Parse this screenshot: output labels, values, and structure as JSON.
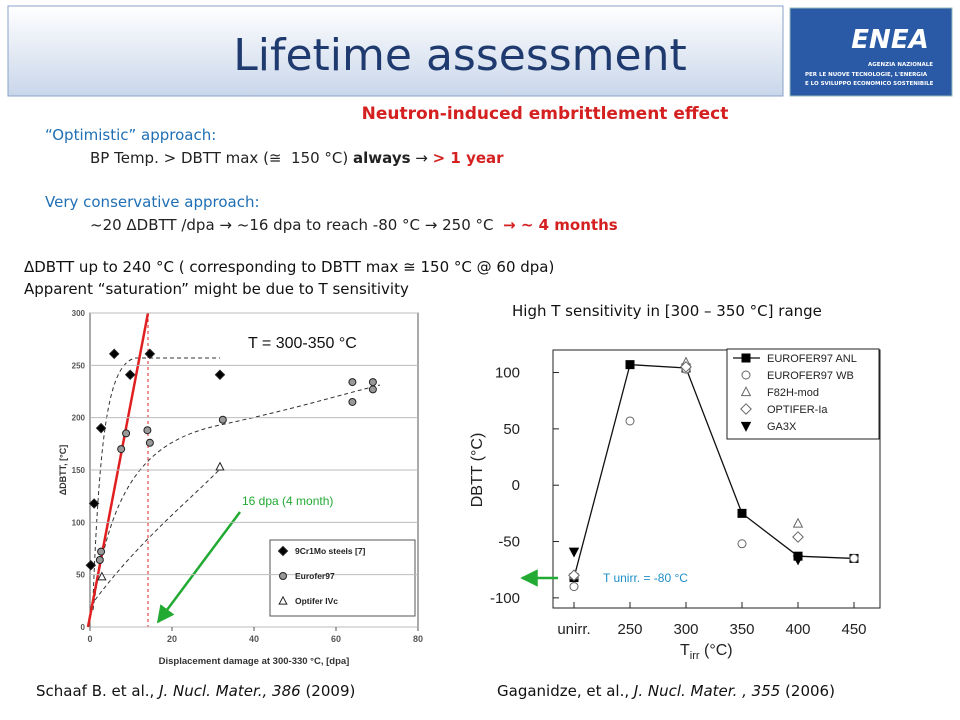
{
  "header": {
    "title": "Lifetime assessment",
    "logo": {
      "name": "ENEA",
      "lines": [
        "AGENZIA NAZIONALE",
        "PER LE NUOVE TECNOLOGIE, L'ENERGIA",
        "E LO SVILUPPO ECONOMICO SOSTENIBILE"
      ]
    }
  },
  "subtitle": "Neutron-induced embrittlement effect",
  "optimistic": {
    "label": "“Optimistic” approach:",
    "line": [
      "BP Temp. > DBTT max (≅  150 °C) ",
      "always",
      " → ",
      "> 1 year"
    ]
  },
  "conservative": {
    "label": "Very conservative approach:",
    "line": [
      "~20 ΔDBTT /dpa → ~16 dpa to reach -80 °C → 250 °C  ",
      "→ ~ 4 months"
    ]
  },
  "notes": [
    "ΔDBTT up to 240 °C ( corresponding to DBTT max ≅ 150 °C @ 60 dpa)",
    "Apparent “saturation” might be due to T sensitivity",
    "High T sensitivity in [300 – 350 °C] range"
  ],
  "references": [
    [
      "Schaaf B. et al., ",
      "J. Nucl. Mater., 386",
      " (2009)"
    ],
    [
      "Gaganidze, et al., ",
      "J. Nucl. Mater. , 355",
      " (2006)"
    ]
  ],
  "chart_data": [
    {
      "type": "scatter",
      "x_label": "Displacement damage at 300-330 °C, [dpa]",
      "y_label": "ΔDBTT, [°C]",
      "xlim": [
        0,
        80
      ],
      "xticks": [
        0,
        20,
        40,
        60,
        80
      ],
      "ylim": [
        0,
        300
      ],
      "yticks": [
        0,
        50,
        100,
        150,
        200,
        250,
        300
      ],
      "grid": true,
      "legend": "lower right",
      "annotations": [
        "T = 300-350 °C",
        "16 dpa (4 month)"
      ],
      "series": [
        {
          "name": "9Cr1Mo steels [7]",
          "marker": "diamond",
          "color": "#000000",
          "x": [
            0.2,
            1,
            2.7,
            5.9,
            9.8,
            14.6,
            31.7
          ],
          "values": [
            59,
            118,
            190,
            261,
            241,
            261,
            241
          ]
        },
        {
          "name": "Eurofer97",
          "marker": "circle",
          "color": "#999999",
          "x": [
            2.4,
            2.7,
            7.6,
            8.8,
            14,
            14.6,
            32.4,
            64,
            64,
            69,
            69
          ],
          "values": [
            64,
            72,
            170,
            185,
            188,
            176,
            198,
            234,
            215,
            234,
            227
          ]
        },
        {
          "name": "Optifer IVc",
          "marker": "triangle",
          "color": "#ffffff",
          "x": [
            2.9,
            31.7
          ],
          "values": [
            48,
            153
          ]
        }
      ]
    },
    {
      "type": "line",
      "y_label": "DBTT (°C)",
      "x_label": [
        "T",
        "irr",
        " (°C)"
      ],
      "categories": [
        "unirr.",
        "250",
        "300",
        "350",
        "400",
        "450"
      ],
      "ylim": [
        -109,
        120
      ],
      "yticks": [
        -100,
        -50,
        0,
        50,
        100
      ],
      "legend": "upper right",
      "annotations": [
        "T unirr. = -80 °C"
      ],
      "series": [
        {
          "name": "EUROFER97 ANL",
          "marker": "square",
          "color": "#000000",
          "line": true,
          "values": [
            -82,
            107,
            104,
            -25,
            -63,
            -65
          ]
        },
        {
          "name": "EUROFER97 WB",
          "marker": "circle",
          "color": "#ffffff",
          "line": false,
          "values": [
            -90,
            57,
            103,
            -52,
            null,
            -65
          ]
        },
        {
          "name": "F82H-mod",
          "marker": "triangle",
          "color": "#ffffff",
          "line": false,
          "values": [
            -80,
            null,
            109,
            null,
            -34,
            null
          ]
        },
        {
          "name": "OPTIFER-Ia",
          "marker": "diamond",
          "color": "#ffffff",
          "line": false,
          "values": [
            -80,
            null,
            105,
            null,
            -46,
            null
          ]
        },
        {
          "name": "GA3X",
          "marker": "triangle-down",
          "color": "#000000",
          "line": false,
          "values": [
            -59,
            null,
            null,
            null,
            -66,
            null
          ]
        }
      ]
    }
  ]
}
